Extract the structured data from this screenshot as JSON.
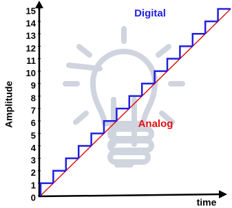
{
  "chart_data": {
    "type": "step",
    "xlabel": "time",
    "ylabel": "Amplitude",
    "xlim": [
      0,
      15
    ],
    "ylim": [
      0,
      15
    ],
    "yticks": [
      0,
      1,
      2,
      3,
      4,
      5,
      6,
      7,
      8,
      9,
      10,
      11,
      12,
      13,
      14,
      15
    ],
    "series": [
      {
        "name": "Digital",
        "color": "#1f1fe0",
        "style": "step",
        "x": [
          0,
          1,
          2,
          3,
          4,
          5,
          6,
          7,
          8,
          9,
          10,
          11,
          12,
          13,
          14
        ],
        "values": [
          1,
          2,
          3,
          4,
          5,
          6,
          7,
          8,
          9,
          10,
          11,
          12,
          13,
          14,
          15
        ]
      },
      {
        "name": "Analog",
        "color": "#e01010",
        "style": "line",
        "x": [
          0,
          15
        ],
        "values": [
          0,
          15
        ]
      }
    ]
  }
}
